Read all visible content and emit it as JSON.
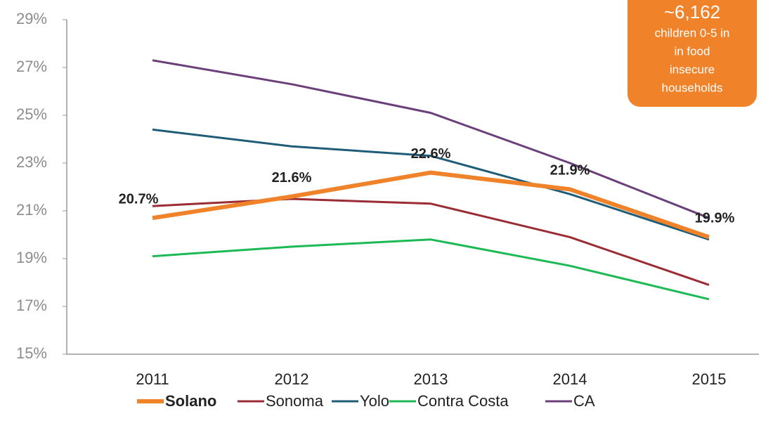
{
  "chart_data": {
    "type": "line",
    "categories": [
      "2011",
      "2012",
      "2013",
      "2014",
      "2015"
    ],
    "series": [
      {
        "name": "Solano",
        "color": "#f0832a",
        "values": [
          20.7,
          21.6,
          22.6,
          21.9,
          19.9
        ],
        "value_labels": [
          "20.7%",
          "21.6%",
          "22.6%",
          "21.9%",
          "19.9%"
        ]
      },
      {
        "name": "Sonoma",
        "color": "#9b2c34",
        "values": [
          21.2,
          21.5,
          21.3,
          19.9,
          17.9
        ]
      },
      {
        "name": "Yolo",
        "color": "#1f5c78",
        "values": [
          24.4,
          23.7,
          23.3,
          21.7,
          19.8
        ]
      },
      {
        "name": "Contra Costa",
        "color": "#1db954",
        "values": [
          19.1,
          19.5,
          19.8,
          18.7,
          17.3
        ]
      },
      {
        "name": "CA",
        "color": "#6a3f7a",
        "values": [
          27.3,
          26.3,
          25.1,
          23.0,
          20.7
        ]
      }
    ],
    "ylim": [
      15,
      29
    ],
    "yticks": [
      {
        "value": 15,
        "label": "15%"
      },
      {
        "value": 17,
        "label": "17%"
      },
      {
        "value": 19,
        "label": "19%"
      },
      {
        "value": 21,
        "label": "21%"
      },
      {
        "value": 23,
        "label": "23%"
      },
      {
        "value": 25,
        "label": "25%"
      },
      {
        "value": 27,
        "label": "27%"
      },
      {
        "value": 29,
        "label": "29%"
      }
    ],
    "grid": false,
    "legend": "bottom",
    "annotation": {
      "headline": "~6,162",
      "lines": [
        "children 0-5 in",
        "in food",
        "insecure",
        "households"
      ],
      "color": "#f0832a"
    }
  }
}
